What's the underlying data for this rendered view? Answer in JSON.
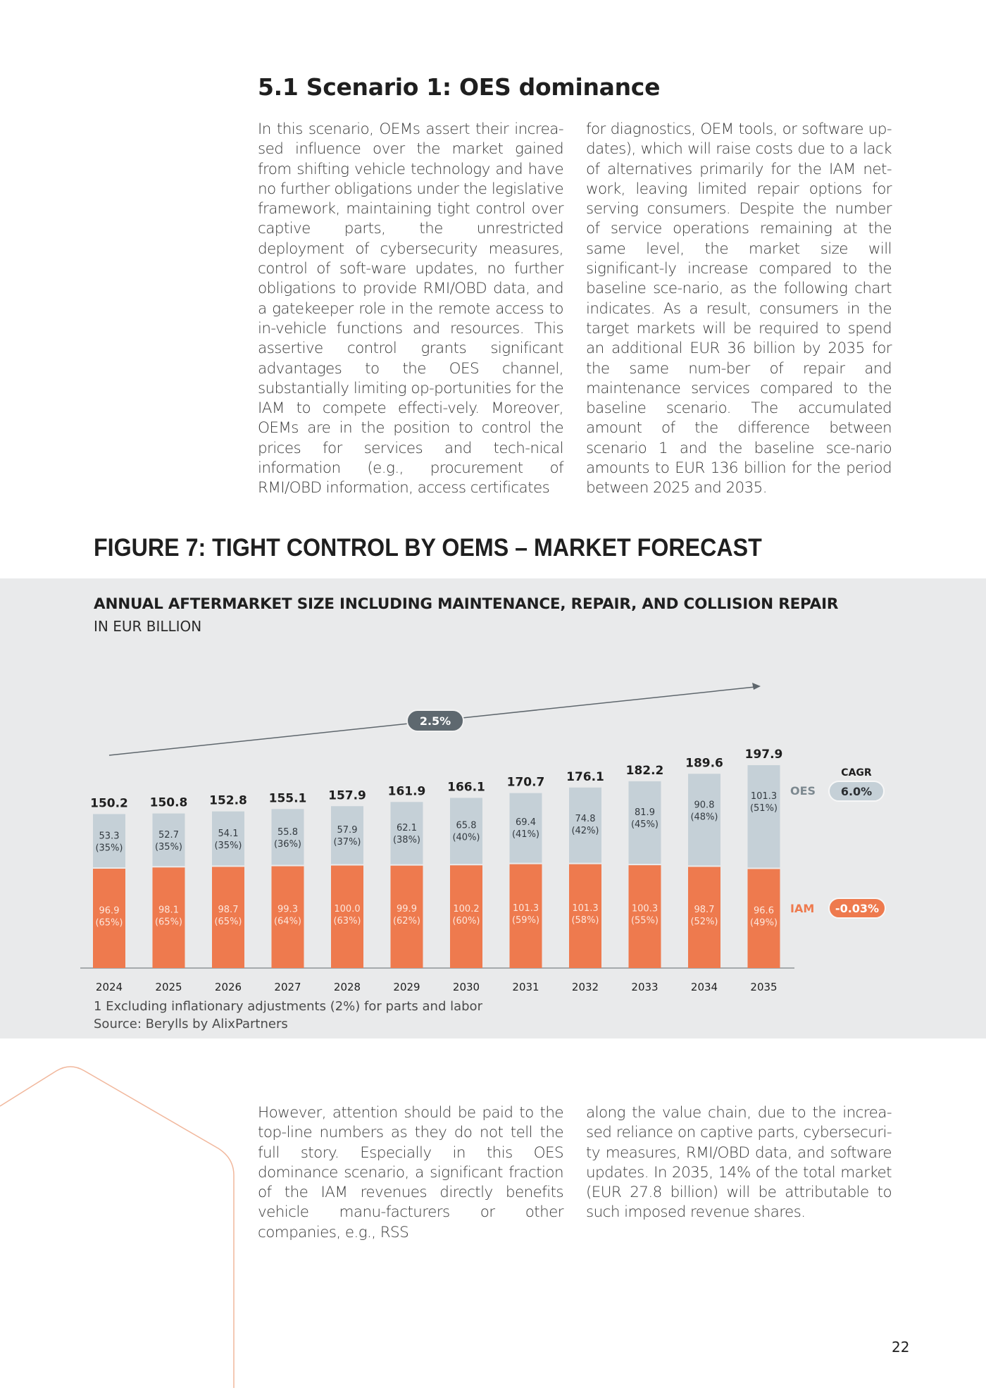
{
  "section": {
    "heading": "5.1 Scenario 1: OES dominance",
    "col1": "In this scenario, OEMs assert their increa-sed influence over the market gained from shifting vehicle technology and have no further obligations under the legislative framework, maintaining tight control over captive parts, the unrestricted deployment of cybersecurity measures, control of soft-ware updates, no further obligations to provide RMI/OBD data, and a gatekeeper role in the remote access to in-vehicle functions and resources. This assertive control grants significant advantages to the OES channel, substantially limiting op-portunities for the IAM to compete effecti-vely. Moreover, OEMs are in the position to control the prices for services and tech-nical information (e.g., procurement of RMI/OBD information, access certificates",
    "col2": "for diagnostics, OEM tools, or software up-dates), which will raise costs due to a lack of alternatives primarily for the IAM net-work, leaving limited repair options for serving consumers. Despite the number of service operations remaining at the same level, the market size will significant-ly increase compared to the baseline sce-nario, as the following chart indicates. As a result, consumers in the target markets will be required to spend an additional EUR 36 billion by 2035 for the same num-ber of repair and maintenance services compared to the baseline scenario. The accumulated amount of the difference between scenario 1 and the baseline sce-nario amounts to EUR 136 billion for the period between 2025 and 2035.",
    "col3": "However, attention should be paid to the top-line numbers as they do not tell the full story. Especially in this OES dominance scenario, a significant fraction of the IAM revenues directly benefits vehicle manu-facturers or other companies, e.g., RSS",
    "col4": "along the value chain, due to the increa-sed reliance on captive parts, cybersecuri-ty measures, RMI/OBD data, and software updates. In 2035, 14% of the total market (EUR 27.8 billion) will be attributable to such imposed revenue shares."
  },
  "figure": {
    "title": "FIGURE 7: TIGHT CONTROL BY OEMS – MARKET FORECAST",
    "footnote": "1 Excluding inflationary adjustments (2%) for parts and labor",
    "source": "Source: Berylls by AlixPartners"
  },
  "chart_data": {
    "type": "bar",
    "stacked": true,
    "title": "ANNUAL AFTERMARKET SIZE INCLUDING MAINTENANCE, REPAIR, AND COLLISION REPAIR",
    "subtitle": "IN EUR BILLION",
    "categories": [
      "2024",
      "2025",
      "2026",
      "2027",
      "2028",
      "2029",
      "2030",
      "2031",
      "2032",
      "2033",
      "2034",
      "2035"
    ],
    "totals": [
      "150.2",
      "150.8",
      "152.8",
      "155.1",
      "157.9",
      "161.9",
      "166.1",
      "170.7",
      "176.1",
      "182.2",
      "189.6",
      "197.9"
    ],
    "series": [
      {
        "name": "IAM",
        "color": "#ee7a4e",
        "values": [
          96.9,
          98.1,
          98.7,
          99.3,
          100.0,
          99.9,
          100.2,
          101.3,
          101.3,
          100.3,
          98.7,
          96.6
        ],
        "labels": [
          "96.9",
          "98.1",
          "98.7",
          "99.3",
          "100.0",
          "99.9",
          "100.2",
          "101.3",
          "101.3",
          "100.3",
          "98.7",
          "96.6"
        ],
        "shares": [
          "(65%)",
          "(65%)",
          "(65%)",
          "(64%)",
          "(63%)",
          "(62%)",
          "(60%)",
          "(59%)",
          "(58%)",
          "(55%)",
          "(52%)",
          "(49%)"
        ]
      },
      {
        "name": "OES",
        "color": "#c5d0d7",
        "values": [
          53.3,
          52.7,
          54.1,
          55.8,
          57.9,
          62.1,
          65.8,
          69.4,
          74.8,
          81.9,
          90.8,
          101.3
        ],
        "labels": [
          "53.3",
          "52.7",
          "54.1",
          "55.8",
          "57.9",
          "62.1",
          "65.8",
          "69.4",
          "74.8",
          "81.9",
          "90.8",
          "101.3"
        ],
        "shares": [
          "(35%)",
          "(35%)",
          "(35%)",
          "(36%)",
          "(37%)",
          "(38%)",
          "(40%)",
          "(41%)",
          "(42%)",
          "(45%)",
          "(48%)",
          "(51%)"
        ]
      }
    ],
    "trend_label": "2.5%",
    "cagr": {
      "header": "CAGR",
      "oes_label": "OES",
      "oes_value": "6.0%",
      "iam_label": "IAM",
      "iam_value": "-0.03%"
    },
    "ylim": [
      0,
      200
    ],
    "grid": false,
    "legend": "right"
  },
  "page": {
    "number": "22"
  }
}
